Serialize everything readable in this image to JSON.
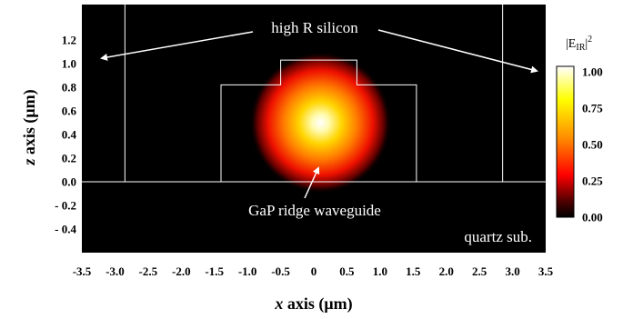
{
  "chart_data": {
    "type": "heatmap",
    "xlabel": {
      "var": "x",
      "rest": " axis (μm)"
    },
    "ylabel": {
      "var": "z",
      "rest": " axis (μm)"
    },
    "xlim": [
      -3.5,
      3.5
    ],
    "ylim": [
      -0.6,
      1.5
    ],
    "x_ticks": [
      "-3.5",
      "-3.0",
      "-2.5",
      "-2.0",
      "-1.5",
      "-1.0",
      "-0.5",
      "0",
      "0.5",
      "1.0",
      "1.5",
      "2.0",
      "2.5",
      "3.0",
      "3.5"
    ],
    "z_ticks": [
      "1.2",
      "1.0",
      "0.8",
      "0.6",
      "0.4",
      "0.2",
      "0.0",
      "- 0.2",
      "- 0.4"
    ],
    "colorbar": {
      "label": {
        "pre": "|E",
        "sub": "IR",
        "post": "|",
        "sup": "2"
      },
      "ticks": [
        "1.00",
        "0.75",
        "0.50",
        "0.25",
        "0.00"
      ],
      "colors": [
        "#ffffff",
        "#ffff00",
        "#ff8a00",
        "#ff0000",
        "#4a0000",
        "#000000"
      ]
    },
    "field_peak": {
      "x": 0.1,
      "z": 0.5,
      "value": 1.0
    },
    "structure": {
      "interface_z": 0.0,
      "silicon_walls_x": [
        -2.85,
        2.85
      ],
      "ridge_outline": [
        [
          -1.4,
          0.0
        ],
        [
          -1.4,
          0.82
        ],
        [
          -0.5,
          0.82
        ],
        [
          -0.5,
          1.03
        ],
        [
          0.65,
          1.03
        ],
        [
          0.65,
          0.82
        ],
        [
          1.55,
          0.82
        ],
        [
          1.55,
          0.0
        ]
      ]
    },
    "annotations": {
      "silicon": "high R silicon",
      "ridge": "GaP ridge waveguide",
      "substrate": "quartz sub."
    }
  }
}
